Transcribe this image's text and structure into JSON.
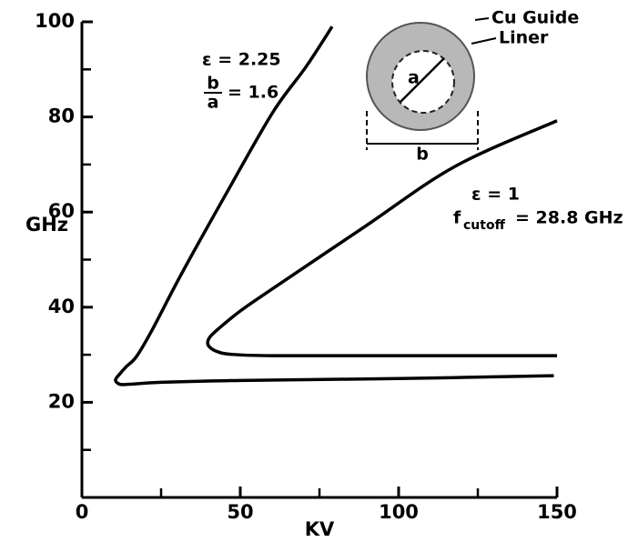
{
  "chart_data": {
    "type": "line",
    "xlabel": "KV",
    "ylabel": "GHz",
    "xlim": [
      0,
      150
    ],
    "ylim": [
      0,
      100
    ],
    "xticks": [
      0,
      50,
      100,
      150
    ],
    "xticks_minor": [
      25,
      75,
      125
    ],
    "yticks": [
      20,
      40,
      60,
      80,
      100
    ],
    "yticks_minor": [
      10,
      30,
      50,
      70,
      90
    ],
    "series": [
      {
        "name": "ε = 2.25",
        "color": "#000000",
        "x": [
          149,
          100,
          50,
          25,
          15,
          12,
          10.6,
          12,
          14,
          17.2,
          22,
          31.6,
          46,
          60.3,
          70.7,
          79
        ],
        "values": [
          25.6,
          25,
          24.6,
          24.2,
          23.8,
          23.8,
          24.7,
          26,
          27.5,
          29.6,
          35,
          47.2,
          64.4,
          81,
          90.5,
          99
        ]
      },
      {
        "name": "ε = 1",
        "color": "#000000",
        "x": [
          150,
          100,
          60,
          47,
          43,
          40.5,
          39.7,
          40.5,
          43,
          50,
          60,
          89,
          117.8,
          150
        ],
        "values": [
          29.8,
          29.8,
          29.8,
          30.1,
          30.6,
          31.5,
          32.5,
          33.8,
          35.4,
          39.2,
          43.8,
          56.8,
          69.6,
          79.2
        ]
      }
    ],
    "annotations": {
      "eps1": "ε = 2.25",
      "frac_num": "b",
      "frac_den": "a",
      "frac_eq": "= 1.6",
      "eps2": "ε = 1",
      "f": "f",
      "f_sub": "cutoff",
      "f_eq": "= 28.8 GHz",
      "cu_guide": "Cu Guide",
      "liner": "Liner",
      "inner_a": "a",
      "outer_b": "b"
    }
  }
}
